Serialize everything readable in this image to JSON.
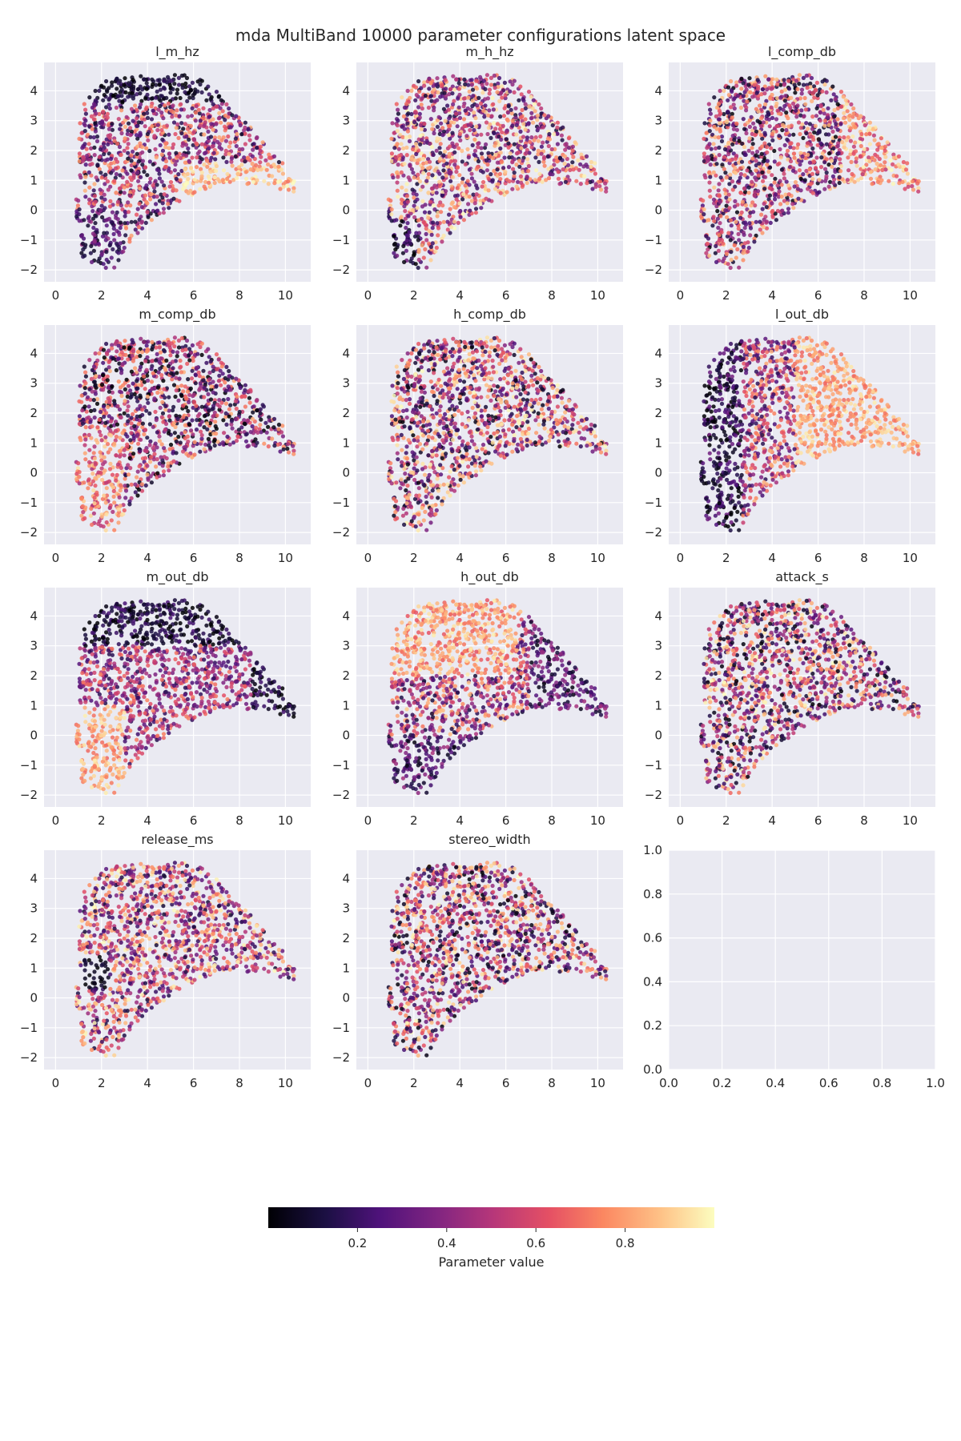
{
  "figure": {
    "title": "mda MultiBand 10000 parameter configurations latent space"
  },
  "chart_data": {
    "type": "scatter",
    "point_count_per_panel": 10000,
    "x_ticks": [
      "0",
      "2",
      "4",
      "6",
      "8",
      "10"
    ],
    "y_ticks": [
      "−2",
      "−1",
      "0",
      "1",
      "2",
      "3",
      "4"
    ],
    "xlim": [
      -0.5,
      11.1
    ],
    "ylim": [
      -2.4,
      4.95
    ],
    "grid": true,
    "background": "#eaeaf2",
    "colormap": "magma",
    "panels": [
      {
        "title": "l_m_hz",
        "pattern": "l_m_hz"
      },
      {
        "title": "m_h_hz",
        "pattern": "m_h_hz"
      },
      {
        "title": "l_comp_db",
        "pattern": "l_comp_db"
      },
      {
        "title": "m_comp_db",
        "pattern": "m_comp_db"
      },
      {
        "title": "h_comp_db",
        "pattern": "noise"
      },
      {
        "title": "l_out_db",
        "pattern": "l_out_db"
      },
      {
        "title": "m_out_db",
        "pattern": "m_out_db"
      },
      {
        "title": "h_out_db",
        "pattern": "h_out_db"
      },
      {
        "title": "attack_s",
        "pattern": "noise"
      },
      {
        "title": "release_ms",
        "pattern": "release_ms"
      },
      {
        "title": "stereo_width",
        "pattern": "noise"
      }
    ],
    "empty_panel": {
      "x_ticks": [
        "0.0",
        "0.2",
        "0.4",
        "0.6",
        "0.8",
        "1.0"
      ],
      "y_ticks": [
        "0.0",
        "0.2",
        "0.4",
        "0.6",
        "0.8",
        "1.0"
      ],
      "xlim": [
        0,
        1
      ],
      "ylim": [
        0,
        1
      ]
    },
    "colorbar": {
      "label": "Parameter value",
      "ticks": [
        "0.2",
        "0.4",
        "0.6",
        "0.8"
      ],
      "range": [
        0,
        1
      ],
      "orientation": "horizontal"
    }
  }
}
